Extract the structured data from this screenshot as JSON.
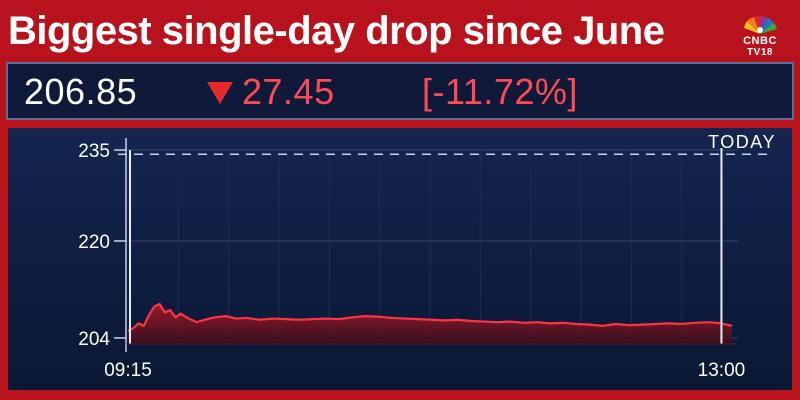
{
  "headline": "Biggest single-day drop since June",
  "brand": {
    "line1": "CNBC",
    "line2": "TV18"
  },
  "quote": {
    "price": "206.85",
    "change": "27.45",
    "change_pct": "[-11.72%]",
    "direction_icon": "down-triangle-icon"
  },
  "colors": {
    "frame": "#b8131c",
    "panel": "#0f1a3a",
    "line": "#ff3344",
    "area": "#7a1420",
    "negative": "#ff4a55"
  },
  "chart_data": {
    "type": "area",
    "period_label": "TODAY",
    "x_start": "09:15",
    "x_end": "13:00",
    "x_ticks": [
      "09:15",
      "13:00"
    ],
    "y_ticks": [
      204,
      220,
      235
    ],
    "ylim": [
      203,
      236
    ],
    "reference_line": {
      "value": 234.3,
      "style": "dashed"
    },
    "grid": true,
    "series": [
      {
        "x": [
          "09:15",
          "09:17",
          "09:19",
          "09:21",
          "09:23",
          "09:25",
          "09:27",
          "09:29",
          "09:31",
          "09:33",
          "09:35",
          "09:38",
          "09:41",
          "09:44",
          "09:48",
          "09:52",
          "09:56",
          "10:00",
          "10:05",
          "10:10",
          "10:15",
          "10:20",
          "10:25",
          "10:30",
          "10:35",
          "10:40",
          "10:45",
          "10:50",
          "10:55",
          "11:00",
          "11:05",
          "11:10",
          "11:15",
          "11:20",
          "11:25",
          "11:30",
          "11:35",
          "11:40",
          "11:45",
          "11:50",
          "11:55",
          "12:00",
          "12:05",
          "12:10",
          "12:15",
          "12:20",
          "12:25",
          "12:30",
          "12:35",
          "12:40",
          "12:45",
          "12:50",
          "12:55",
          "13:00",
          "13:04"
        ],
        "values": [
          205.2,
          205.6,
          206.4,
          206.0,
          207.8,
          209.2,
          209.6,
          208.2,
          208.6,
          207.4,
          208.0,
          207.2,
          206.6,
          207.0,
          207.4,
          207.6,
          207.2,
          207.3,
          207.0,
          207.2,
          207.1,
          207.0,
          207.1,
          207.2,
          207.1,
          207.4,
          207.6,
          207.5,
          207.3,
          207.2,
          207.1,
          207.0,
          206.9,
          207.0,
          206.8,
          206.7,
          206.6,
          206.7,
          206.5,
          206.6,
          206.4,
          206.5,
          206.3,
          206.2,
          206.0,
          206.3,
          206.1,
          206.2,
          206.3,
          206.4,
          206.3,
          206.5,
          206.6,
          206.4,
          206.0
        ]
      }
    ]
  }
}
